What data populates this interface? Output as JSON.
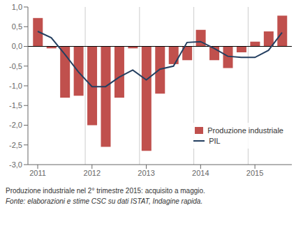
{
  "chart_data": {
    "type": "bar",
    "x": [
      2011.0,
      2011.25,
      2011.5,
      2011.75,
      2012.0,
      2012.25,
      2012.5,
      2012.75,
      2013.0,
      2013.25,
      2013.5,
      2013.75,
      2014.0,
      2014.25,
      2014.5,
      2014.75,
      2015.0,
      2015.25,
      2015.5
    ],
    "series": [
      {
        "name": "Produzione industriale",
        "type": "bar",
        "color": "#c0504d",
        "values": [
          0.72,
          -0.05,
          -1.3,
          -1.25,
          -2.0,
          -2.55,
          -1.3,
          -0.05,
          -2.65,
          -1.2,
          -0.45,
          -0.35,
          0.42,
          -0.35,
          -0.55,
          -0.15,
          0.12,
          0.38,
          0.78
        ]
      },
      {
        "name": "PIL",
        "type": "line",
        "color": "#243f60",
        "values": [
          0.38,
          0.22,
          -0.2,
          -0.65,
          -1.02,
          -1.02,
          -0.78,
          -0.6,
          -0.85,
          -0.58,
          -0.5,
          0.1,
          0.12,
          -0.05,
          -0.25,
          -0.28,
          -0.28,
          -0.1,
          0.35
        ]
      }
    ],
    "xlim": [
      2010.82,
      2015.68
    ],
    "xticks": [
      2011,
      2012,
      2013,
      2014,
      2015
    ],
    "ylim": [
      -3.0,
      1.0
    ],
    "yticks": [
      {
        "value": -3.0,
        "label": "-3,0"
      },
      {
        "value": -2.5,
        "label": "-2,5"
      },
      {
        "value": -2.0,
        "label": "-2,0"
      },
      {
        "value": -1.5,
        "label": "-1,5"
      },
      {
        "value": -1.0,
        "label": "-1,0"
      },
      {
        "value": -0.5,
        "label": "-0,5"
      },
      {
        "value": 0.0,
        "label": "0,0"
      },
      {
        "value": 0.5,
        "label": "0,5"
      },
      {
        "value": 1.0,
        "label": "1,0"
      }
    ],
    "vlines": [
      2011.875,
      2012.875,
      2013.875,
      2014.875
    ],
    "legend": "lower right",
    "annotations": [
      "Produzione industriale nel 2° trimestre 2015: acquisito a maggio.",
      "Fonte: elaborazioni e stime CSC su dati ISTAT, Indagine rapida."
    ]
  }
}
